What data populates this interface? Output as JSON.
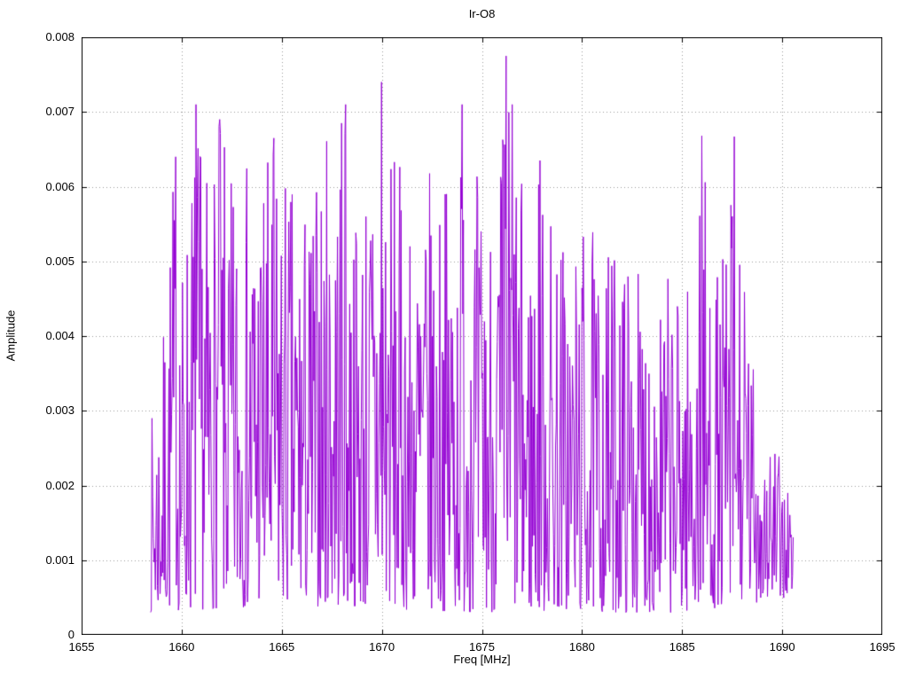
{
  "title": "Ir-O8",
  "chart_data": {
    "type": "line",
    "title": "Ir-O8",
    "xlabel": "Freq [MHz]",
    "ylabel": "Amplitude",
    "xlim": [
      1655,
      1695
    ],
    "ylim": [
      0,
      0.008
    ],
    "x_ticks": [
      1655,
      1660,
      1665,
      1670,
      1675,
      1680,
      1685,
      1690,
      1695
    ],
    "y_ticks": [
      0,
      0.001,
      0.002,
      0.003,
      0.004,
      0.005,
      0.006,
      0.007,
      0.008
    ],
    "grid": true,
    "grid_style": "dotted",
    "grid_color": "#9a9a9a",
    "legend_position": "none",
    "line_color": "#9400d3",
    "border_color": "#000000",
    "background_color": "#ffffff",
    "series_name": "spectrum-amplitude",
    "signal_x_range": [
      1658.45,
      1690.55
    ],
    "synthesis": {
      "seed": 7,
      "num_points": 950,
      "power": 1.6
    },
    "lower_envelope": [
      [
        1658.45,
        0.0003
      ],
      [
        1665.0,
        0.0004
      ],
      [
        1675.0,
        0.0003
      ],
      [
        1685.0,
        0.0003
      ],
      [
        1690.55,
        0.0005
      ]
    ],
    "upper_envelope": [
      [
        1658.45,
        0.0029
      ],
      [
        1659.0,
        0.0037
      ],
      [
        1659.6,
        0.0064
      ],
      [
        1660.0,
        0.005
      ],
      [
        1660.7,
        0.0071
      ],
      [
        1661.3,
        0.0062
      ],
      [
        1661.9,
        0.0069
      ],
      [
        1662.5,
        0.0061
      ],
      [
        1663.2,
        0.0064
      ],
      [
        1663.8,
        0.0065
      ],
      [
        1664.5,
        0.0066
      ],
      [
        1665.2,
        0.0063
      ],
      [
        1665.8,
        0.0059
      ],
      [
        1666.5,
        0.0059
      ],
      [
        1667.2,
        0.0068
      ],
      [
        1668.0,
        0.0071
      ],
      [
        1668.7,
        0.0059
      ],
      [
        1669.5,
        0.0066
      ],
      [
        1670.0,
        0.0074
      ],
      [
        1670.6,
        0.0066
      ],
      [
        1671.4,
        0.0057
      ],
      [
        1672.2,
        0.0063
      ],
      [
        1673.0,
        0.006
      ],
      [
        1673.7,
        0.0065
      ],
      [
        1674.2,
        0.0071
      ],
      [
        1675.0,
        0.0059
      ],
      [
        1675.7,
        0.006
      ],
      [
        1676.2,
        0.0078
      ],
      [
        1676.5,
        0.0071
      ],
      [
        1677.3,
        0.0055
      ],
      [
        1677.9,
        0.0064
      ],
      [
        1678.6,
        0.0058
      ],
      [
        1679.5,
        0.0052
      ],
      [
        1680.2,
        0.0057
      ],
      [
        1681.0,
        0.005
      ],
      [
        1681.8,
        0.0055
      ],
      [
        1682.5,
        0.005
      ],
      [
        1683.3,
        0.0048
      ],
      [
        1684.1,
        0.0048
      ],
      [
        1684.9,
        0.0048
      ],
      [
        1685.6,
        0.0048
      ],
      [
        1686.0,
        0.0067
      ],
      [
        1686.5,
        0.0048
      ],
      [
        1687.0,
        0.005
      ],
      [
        1687.6,
        0.0067
      ],
      [
        1688.0,
        0.005
      ],
      [
        1688.6,
        0.0037
      ],
      [
        1689.2,
        0.003
      ],
      [
        1689.8,
        0.0024
      ],
      [
        1690.3,
        0.0023
      ],
      [
        1690.55,
        0.0016
      ]
    ],
    "peaks": [
      [
        1659.7,
        0.0064
      ],
      [
        1660.7,
        0.0071
      ],
      [
        1661.9,
        0.0069
      ],
      [
        1664.6,
        0.00665
      ],
      [
        1668.0,
        0.00685
      ],
      [
        1668.2,
        0.0071
      ],
      [
        1670.0,
        0.0074
      ],
      [
        1674.0,
        0.0071
      ],
      [
        1676.2,
        0.00775
      ],
      [
        1676.5,
        0.0071
      ],
      [
        1677.9,
        0.00635
      ],
      [
        1686.0,
        0.00668
      ],
      [
        1687.6,
        0.00667
      ]
    ]
  }
}
